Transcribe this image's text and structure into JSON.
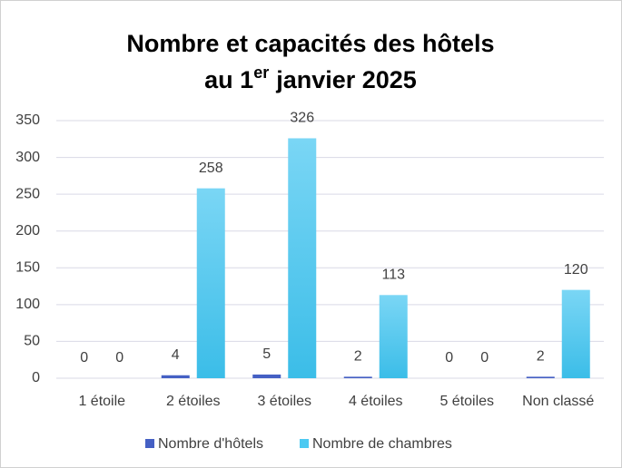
{
  "chart_data": {
    "type": "bar",
    "title": [
      "Nombre et capacités des hôtels",
      "au 1",
      "er",
      "janvier 2025"
    ],
    "categories": [
      "1 étoile",
      "2 étoiles",
      "3 étoiles",
      "4 étoiles",
      "5 étoiles",
      "Non classé"
    ],
    "series": [
      {
        "name": "Nombre d'hôtels",
        "color": "#4560c4",
        "values": [
          0,
          4,
          5,
          2,
          0,
          2
        ]
      },
      {
        "name": "Nombre de chambres",
        "color": "#4ccaf2",
        "values": [
          0,
          258,
          326,
          113,
          0,
          120
        ]
      }
    ],
    "ylim": [
      0,
      350
    ],
    "yticks": [
      0,
      50,
      100,
      150,
      200,
      250,
      300,
      350
    ],
    "grid": true,
    "legend": "bottom"
  }
}
